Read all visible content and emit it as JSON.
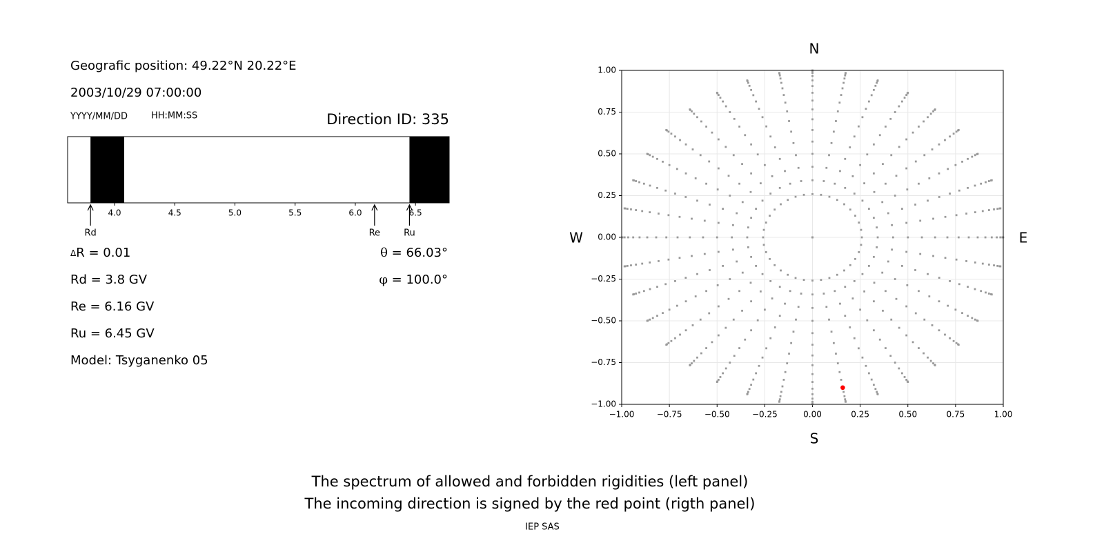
{
  "header": {
    "position": "Geografic position: 49.22°N 20.22°E",
    "datetime": "2003/10/29 07:00:00",
    "date_format": "YYYY/MM/DD",
    "time_format": "HH:MM:SS",
    "direction_id": "Direction ID: 335"
  },
  "spectrum": {
    "type": "spectrum",
    "xlim": [
      3.61,
      6.78
    ],
    "xticks": [
      {
        "value": 4,
        "label": "4.0"
      },
      4.5,
      {
        "value": 5,
        "label": "5.0"
      },
      5.5,
      {
        "value": 6,
        "label": "6.0"
      },
      6.5
    ],
    "forbidden": [
      [
        3.8,
        4.08
      ],
      [
        6.45,
        6.78
      ]
    ],
    "color": "#000000",
    "markers": [
      {
        "name": "Rd",
        "label": "Rd = 3.8 GV",
        "value": 3.8
      },
      {
        "name": "Re",
        "label": "Re = 6.16 GV",
        "value": 6.16
      },
      {
        "name": "Ru",
        "label": "Ru = 6.45 GV",
        "value": 6.45
      }
    ]
  },
  "delta_r": {
    "symbol": "Δ",
    "text": "R = 0.01"
  },
  "angles": {
    "theta": {
      "symbol": "θ",
      "text": " = 66.03°",
      "value": 66.03
    },
    "phi": {
      "symbol": "φ",
      "text": " = 100.0°",
      "value": 100
    }
  },
  "model": "Model: Tsyganenko 05",
  "sky_map": {
    "type": "scatter",
    "xlim": [
      -1,
      1
    ],
    "ylim": [
      -1,
      1
    ],
    "xticks": [
      {
        "value": -1,
        "label": "−1.00"
      },
      {
        "value": -0.75,
        "label": "−0.75"
      },
      {
        "value": -0.5,
        "label": "−0.50"
      },
      {
        "value": -0.25,
        "label": "−0.25"
      },
      {
        "value": 0,
        "label": "0.00"
      },
      0.25,
      {
        "value": 0.5,
        "label": "0.50"
      },
      0.75,
      {
        "value": 1,
        "label": "1.00"
      }
    ],
    "yticks": [
      {
        "value": -1,
        "label": "−1.00"
      },
      {
        "value": -0.75,
        "label": "−0.75"
      },
      {
        "value": -0.5,
        "label": "−0.50"
      },
      {
        "value": -0.25,
        "label": "−0.25"
      },
      {
        "value": 0,
        "label": "0.00"
      },
      0.25,
      {
        "value": 0.5,
        "label": "0.50"
      },
      0.75,
      {
        "value": 1,
        "label": "1.00"
      }
    ],
    "grid": true,
    "color": "#999999",
    "highlight_color": "#ff0000",
    "zenith_angles": [
      0,
      15,
      20,
      25,
      30,
      35,
      40,
      45,
      50,
      55,
      60,
      65,
      70,
      75,
      80,
      85,
      90
    ],
    "azimuths": [
      0,
      10,
      20,
      30,
      40,
      50,
      60,
      70,
      80,
      90,
      100,
      110,
      120,
      130,
      140,
      150,
      160,
      170,
      180,
      190,
      200,
      210,
      220,
      230,
      240,
      250,
      260,
      270,
      280,
      290,
      300,
      310,
      320,
      330,
      340,
      350
    ]
  },
  "compass": {
    "north": "N",
    "south": "S",
    "west": "W",
    "east": "E"
  },
  "caption": [
    "The spectrum of allowed and forbidden rigidities (left panel)",
    "The incoming direction is signed by the red point (rigth panel)"
  ],
  "footer": "IEP SAS"
}
